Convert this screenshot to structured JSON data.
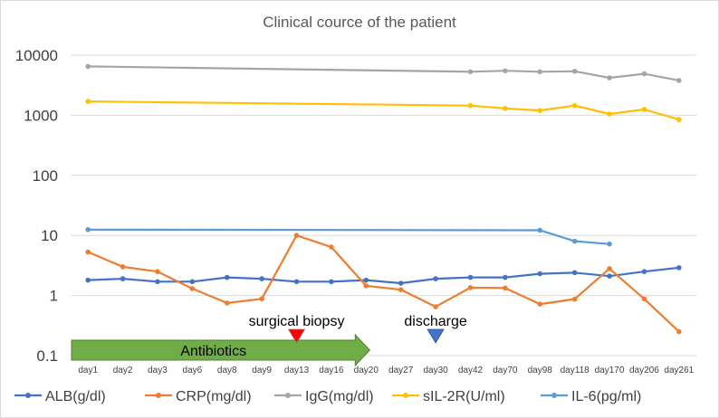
{
  "chart_data": {
    "type": "line",
    "title": "Clinical cource of the patient",
    "yscale": "log",
    "ylim": [
      0.1,
      10000
    ],
    "yticks": [
      "0.1",
      "1",
      "10",
      "100",
      "1000",
      "10000"
    ],
    "grid": true,
    "legend_position": "bottom",
    "categories": [
      "day1",
      "day2",
      "day3",
      "day6",
      "day8",
      "day9",
      "day13",
      "day16",
      "day20",
      "day27",
      "day30",
      "day42",
      "day70",
      "day98",
      "day118",
      "day170",
      "day206",
      "day261"
    ],
    "series": [
      {
        "name": "ALB(g/dl)",
        "color": "#4472c4",
        "values": [
          1.8,
          1.9,
          1.7,
          1.7,
          2.0,
          1.9,
          1.7,
          1.7,
          1.8,
          1.6,
          1.9,
          2.0,
          2.0,
          2.3,
          2.4,
          2.1,
          2.5,
          2.9
        ]
      },
      {
        "name": "CRP(mg/dl)",
        "color": "#ed7d31",
        "values": [
          5.3,
          3.0,
          2.5,
          1.3,
          0.75,
          0.88,
          10.0,
          6.4,
          1.45,
          1.25,
          0.65,
          1.35,
          1.33,
          0.72,
          0.87,
          2.8,
          0.88,
          0.25
        ]
      },
      {
        "name": "IgG(mg/dl)",
        "color": "#a5a5a5",
        "values": [
          6500,
          null,
          null,
          null,
          null,
          null,
          null,
          null,
          null,
          null,
          null,
          5300,
          5500,
          5300,
          5400,
          4200,
          4900,
          3800
        ]
      },
      {
        "name": "sIL-2R(U/ml)",
        "color": "#ffc000",
        "values": [
          1700,
          null,
          null,
          null,
          null,
          null,
          null,
          null,
          null,
          null,
          null,
          1450,
          1300,
          1200,
          1450,
          1050,
          1250,
          850
        ]
      },
      {
        "name": "IL-6(pg/ml)",
        "color": "#5b9bd5",
        "values": [
          12.5,
          null,
          null,
          null,
          null,
          null,
          null,
          null,
          null,
          null,
          null,
          null,
          null,
          12.2,
          8.0,
          7.2,
          null,
          null
        ]
      }
    ],
    "annotations": {
      "biopsy": {
        "label": "surgical biopsy",
        "category": "day13",
        "marker_color": "#ff0000"
      },
      "discharge": {
        "label": "discharge",
        "category": "day30",
        "marker_color": "#4472c4"
      },
      "antibiotics": {
        "label": "Antibiotics",
        "from": "day1",
        "to": "day20",
        "color": "#70ad47"
      }
    }
  }
}
